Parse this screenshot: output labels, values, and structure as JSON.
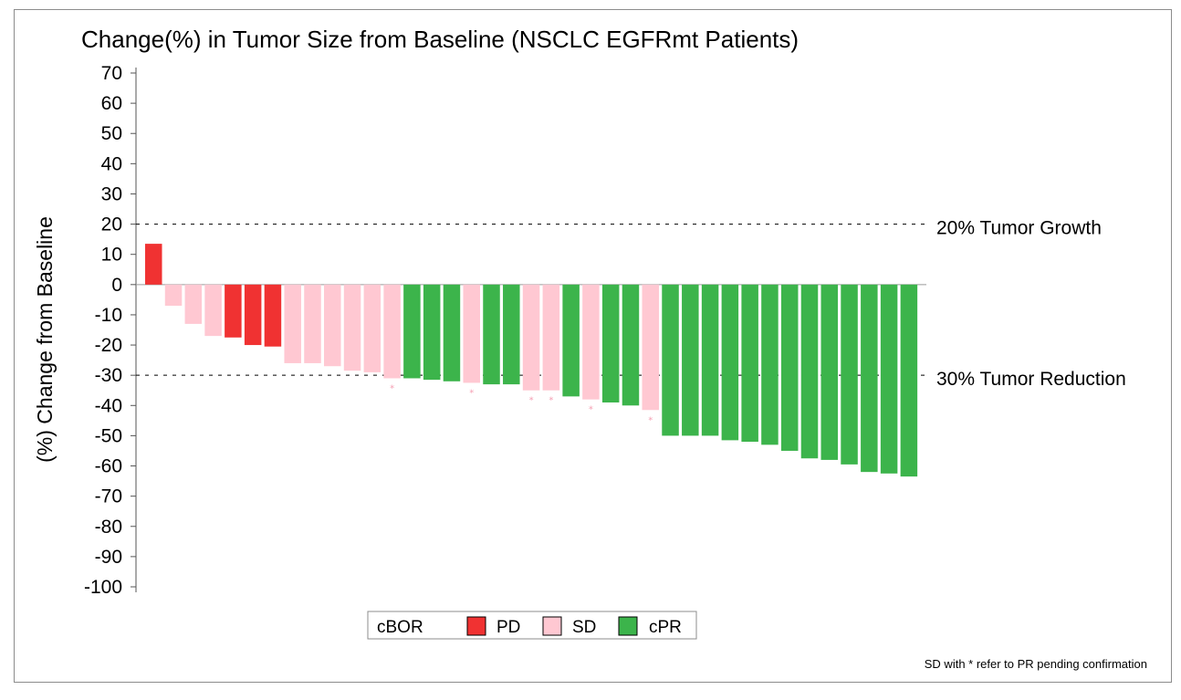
{
  "chart_data": {
    "type": "bar",
    "title": "Change(%) in Tumor Size from Baseline (NSCLC EGFRmt Patients)",
    "xlabel": "",
    "ylabel": "(%) Change from Baseline",
    "ylim": [
      -100,
      70
    ],
    "yticks": [
      70,
      60,
      50,
      40,
      30,
      20,
      10,
      0,
      -10,
      -20,
      -30,
      -40,
      -50,
      -60,
      -70,
      -80,
      -90,
      -100
    ],
    "grid": false,
    "reference_lines": [
      {
        "value": 20,
        "label": "20% Tumor Growth"
      },
      {
        "value": -30,
        "label": "30% Tumor Reduction"
      }
    ],
    "legend": {
      "title": "cBOR",
      "position": "bottom",
      "entries": [
        {
          "label": "PD",
          "color": "#f03232"
        },
        {
          "label": "SD",
          "color": "#ffc8d2"
        },
        {
          "label": "cPR",
          "color": "#3cb44b"
        }
      ]
    },
    "colors": {
      "PD": "#f03232",
      "SD": "#ffc8d2",
      "cPR": "#3cb44b",
      "star": "#f5a0b4"
    },
    "star_symbol": "*",
    "bars": [
      {
        "value": 13.5,
        "cbor": "PD"
      },
      {
        "value": -7,
        "cbor": "SD"
      },
      {
        "value": -13,
        "cbor": "SD"
      },
      {
        "value": -17,
        "cbor": "SD"
      },
      {
        "value": -17.5,
        "cbor": "PD"
      },
      {
        "value": -20,
        "cbor": "PD"
      },
      {
        "value": -20.5,
        "cbor": "PD"
      },
      {
        "value": -26,
        "cbor": "SD"
      },
      {
        "value": -26,
        "cbor": "SD"
      },
      {
        "value": -27,
        "cbor": "SD"
      },
      {
        "value": -28.5,
        "cbor": "SD"
      },
      {
        "value": -29,
        "cbor": "SD"
      },
      {
        "value": -31,
        "cbor": "SD",
        "star": true
      },
      {
        "value": -31,
        "cbor": "cPR"
      },
      {
        "value": -31.5,
        "cbor": "cPR"
      },
      {
        "value": -32,
        "cbor": "cPR"
      },
      {
        "value": -32.5,
        "cbor": "SD",
        "star": true
      },
      {
        "value": -33,
        "cbor": "cPR"
      },
      {
        "value": -33,
        "cbor": "cPR"
      },
      {
        "value": -35,
        "cbor": "SD",
        "star": true
      },
      {
        "value": -35,
        "cbor": "SD",
        "star": true
      },
      {
        "value": -37,
        "cbor": "cPR"
      },
      {
        "value": -38,
        "cbor": "SD",
        "star": true
      },
      {
        "value": -39,
        "cbor": "cPR"
      },
      {
        "value": -40,
        "cbor": "cPR"
      },
      {
        "value": -41.5,
        "cbor": "SD",
        "star": true
      },
      {
        "value": -50,
        "cbor": "cPR"
      },
      {
        "value": -50,
        "cbor": "cPR"
      },
      {
        "value": -50,
        "cbor": "cPR"
      },
      {
        "value": -51.5,
        "cbor": "cPR"
      },
      {
        "value": -52,
        "cbor": "cPR"
      },
      {
        "value": -53,
        "cbor": "cPR"
      },
      {
        "value": -55,
        "cbor": "cPR"
      },
      {
        "value": -57.5,
        "cbor": "cPR"
      },
      {
        "value": -58,
        "cbor": "cPR"
      },
      {
        "value": -59.5,
        "cbor": "cPR"
      },
      {
        "value": -62,
        "cbor": "cPR"
      },
      {
        "value": -62.5,
        "cbor": "cPR"
      },
      {
        "value": -63.5,
        "cbor": "cPR"
      }
    ],
    "footnote": "SD with * refer to PR pending confirmation"
  }
}
